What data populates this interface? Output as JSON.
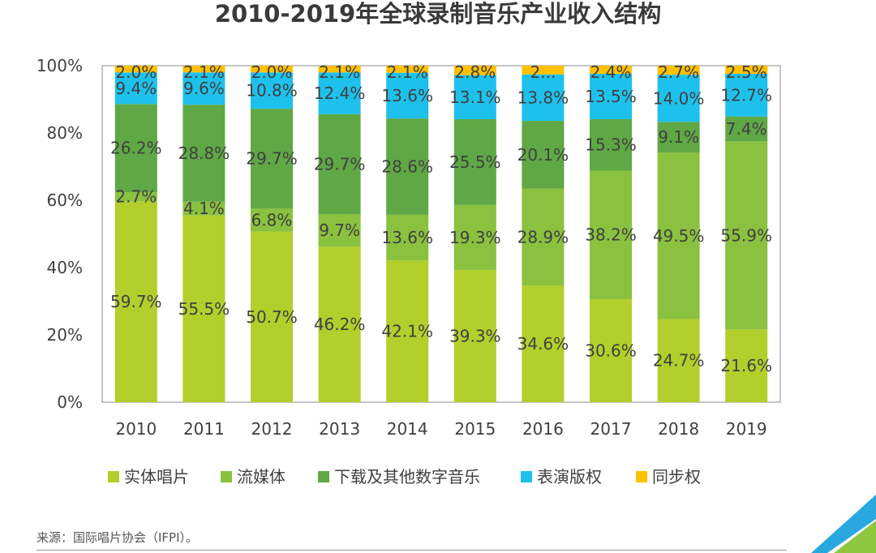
{
  "chart_data": {
    "type": "bar",
    "stacked": true,
    "title": "2010-2019年全球录制音乐产业收入结构",
    "xlabel": "",
    "ylabel": "",
    "ylim": [
      0,
      100
    ],
    "y_ticks": [
      "0%",
      "20%",
      "40%",
      "60%",
      "80%",
      "100%"
    ],
    "categories": [
      "2010",
      "2011",
      "2012",
      "2013",
      "2014",
      "2015",
      "2016",
      "2017",
      "2018",
      "2019"
    ],
    "series": [
      {
        "name": "实体唱片",
        "color": "#b2cf2c",
        "values": [
          59.7,
          55.5,
          50.7,
          46.2,
          42.1,
          39.3,
          34.6,
          30.6,
          24.7,
          21.6
        ],
        "labels": [
          "59.7%",
          "55.5%",
          "50.7%",
          "46.2%",
          "42.1%",
          "39.3%",
          "34.6%",
          "30.6%",
          "24.7%",
          "21.6%"
        ]
      },
      {
        "name": "流媒体",
        "color": "#8ac13f",
        "values": [
          2.7,
          4.1,
          6.8,
          9.7,
          13.6,
          19.3,
          28.9,
          38.2,
          49.5,
          55.9
        ],
        "labels": [
          "2.7%",
          "4.1%",
          "6.8%",
          "9.7%",
          "13.6%",
          "19.3%",
          "28.9%",
          "38.2%",
          "49.5%",
          "55.9%"
        ]
      },
      {
        "name": "下载及其他数字音乐",
        "color": "#5fa845",
        "values": [
          26.2,
          28.8,
          29.7,
          29.7,
          28.6,
          25.5,
          20.1,
          15.3,
          9.1,
          7.4
        ],
        "labels": [
          "26.2%",
          "28.8%",
          "29.7%",
          "29.7%",
          "28.6%",
          "25.5%",
          "20.1%",
          "15.3%",
          "9.1%",
          "7.4%"
        ]
      },
      {
        "name": "表演版权",
        "color": "#1ec1ec",
        "values": [
          9.4,
          9.6,
          10.8,
          12.4,
          13.6,
          13.1,
          13.8,
          13.5,
          14.0,
          12.7
        ],
        "labels": [
          "9.4%",
          "9.6%",
          "10.8%",
          "12.4%",
          "13.6%",
          "13.1%",
          "13.8%",
          "13.5%",
          "14.0%",
          "12.7%"
        ]
      },
      {
        "name": "同步权",
        "color": "#ffc000",
        "values": [
          2.0,
          2.1,
          2.0,
          2.1,
          2.1,
          2.8,
          2.6,
          2.4,
          2.7,
          2.5
        ],
        "labels": [
          "2.0%",
          "2.1%",
          "2.0%",
          "2.1%",
          "2.1%",
          "2.8%",
          "2...",
          "2.4%",
          "2.7%",
          "2.5%"
        ]
      }
    ],
    "legend_position": "bottom"
  },
  "source": "来源：国际唱片协会（IFPI）。",
  "colors": {
    "logo_blue": "#29a8e0",
    "logo_green": "#8dc63f"
  }
}
